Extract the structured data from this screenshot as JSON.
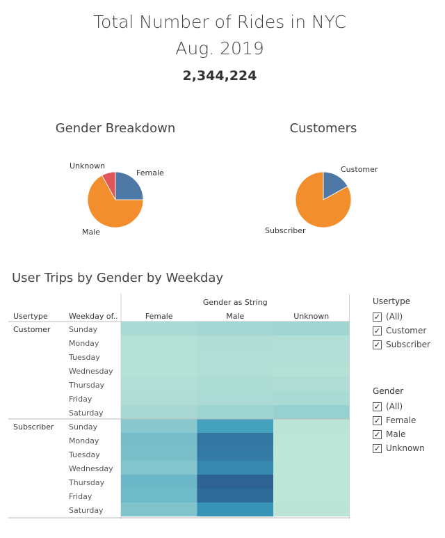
{
  "header": {
    "title_line1": "Total Number of Rides in NYC",
    "title_line2": "Aug. 2019",
    "total": "2,344,224"
  },
  "chart_data": [
    {
      "type": "pie",
      "title": "Gender Breakdown",
      "slices": [
        {
          "label": "Female",
          "value": 25,
          "color": "#4e79a7"
        },
        {
          "label": "Male",
          "value": 67,
          "color": "#f28e2b"
        },
        {
          "label": "Unknown",
          "value": 8,
          "color": "#e15759"
        }
      ]
    },
    {
      "type": "pie",
      "title": "Customers",
      "slices": [
        {
          "label": "Customer",
          "value": 17,
          "color": "#4e79a7"
        },
        {
          "label": "Subscriber",
          "value": 83,
          "color": "#f28e2b"
        }
      ]
    },
    {
      "type": "heatmap",
      "title": "User Trips by Gender by Weekday",
      "column_header": "Gender as String",
      "row_header_1": "Usertype",
      "row_header_2": "Weekday of..",
      "columns": [
        "Female",
        "Male",
        "Unknown"
      ],
      "groups": [
        {
          "name": "Customer",
          "rows": [
            {
              "day": "Sunday",
              "values": [
                0.1,
                0.12,
                0.14
              ]
            },
            {
              "day": "Monday",
              "values": [
                0.05,
                0.07,
                0.06
              ]
            },
            {
              "day": "Tuesday",
              "values": [
                0.04,
                0.06,
                0.06
              ]
            },
            {
              "day": "Wednesday",
              "values": [
                0.04,
                0.06,
                0.05
              ]
            },
            {
              "day": "Thursday",
              "values": [
                0.06,
                0.08,
                0.07
              ]
            },
            {
              "day": "Friday",
              "values": [
                0.07,
                0.09,
                0.1
              ]
            },
            {
              "day": "Saturday",
              "values": [
                0.11,
                0.15,
                0.18
              ]
            }
          ]
        },
        {
          "name": "Subscriber",
          "rows": [
            {
              "day": "Sunday",
              "values": [
                0.25,
                0.55,
                0.02
              ]
            },
            {
              "day": "Monday",
              "values": [
                0.33,
                0.82,
                0.01
              ]
            },
            {
              "day": "Tuesday",
              "values": [
                0.32,
                0.8,
                0.01
              ]
            },
            {
              "day": "Wednesday",
              "values": [
                0.27,
                0.72,
                0.01
              ]
            },
            {
              "day": "Thursday",
              "values": [
                0.38,
                0.95,
                0.01
              ]
            },
            {
              "day": "Friday",
              "values": [
                0.36,
                0.9,
                0.01
              ]
            },
            {
              "day": "Saturday",
              "values": [
                0.28,
                0.65,
                0.02
              ]
            }
          ]
        }
      ],
      "color_low": "#bfe6d8",
      "color_high": "#2b5a8c"
    }
  ],
  "filters": {
    "usertype": {
      "title": "Usertype",
      "items": [
        "(All)",
        "Customer",
        "Subscriber"
      ]
    },
    "gender": {
      "title": "Gender",
      "items": [
        "(All)",
        "Female",
        "Male",
        "Unknown"
      ]
    }
  }
}
